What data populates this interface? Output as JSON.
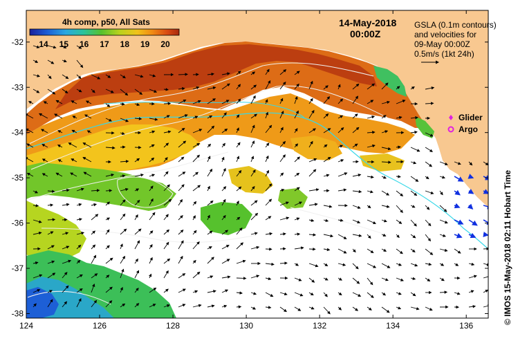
{
  "map": {
    "composite_label": "4h comp, p50, All Sats",
    "date": "14-May-2018",
    "time": "00:00Z",
    "gsla_note_lines": [
      "GSLA (0.1m contours)",
      "and velocities for",
      "09-May 00:00Z",
      "0.5m/s (1kt 24h)"
    ],
    "credit": "© IMOS 15-May-2018 02:11 Hobart Time",
    "colorbar": {
      "ticks": [
        "14",
        "15",
        "16",
        "17",
        "18",
        "19",
        "20"
      ],
      "colors": [
        "#1a1f9c",
        "#1d5fd6",
        "#2aa7e0",
        "#2bc39b",
        "#56c12d",
        "#b8d21e",
        "#f0c21a",
        "#f08a14",
        "#d94a12",
        "#a8290e"
      ]
    },
    "legend": [
      {
        "label": "Glider",
        "color": "#e020e0",
        "symbol": "diamond-icon"
      },
      {
        "label": "Argo",
        "color": "#e020e0",
        "symbol": "circle-icon"
      }
    ],
    "axes": {
      "x_ticks": [
        "124",
        "126",
        "128",
        "130",
        "132",
        "134",
        "136"
      ],
      "y_ticks": [
        "-32",
        "-33",
        "-34",
        "-35",
        "-36",
        "-37",
        "-38"
      ],
      "lon_range": [
        124,
        136.6
      ],
      "lat_range": [
        -38.1,
        -31.3
      ]
    },
    "colors": {
      "land": "#f8c890",
      "frame": "#000000",
      "contour": "#f0f0f0",
      "cyan_line": "#38d8e8"
    }
  }
}
